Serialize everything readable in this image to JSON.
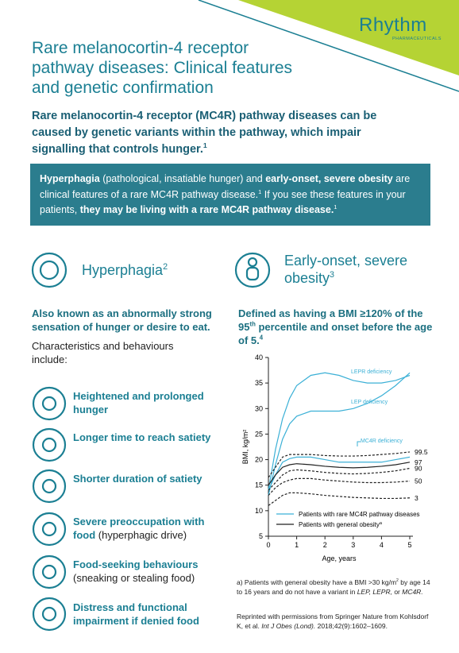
{
  "header": {
    "logo": "Rhythm",
    "logo_sub": "PHARMACEUTICALS",
    "title": "Rare melanocortin-4 receptor pathway diseases: Clinical features and genetic confirmation"
  },
  "intro": [
    {
      "text": "Rare melanocortin-4 receptor (MC4R) pathway diseases can be caused by genetic variants within the pathway, which impair signalling that controls hunger."
    },
    {
      "text": "1",
      "style": "sup"
    }
  ],
  "callout": [
    {
      "text": "Hyperphagia",
      "style": "b"
    },
    {
      "text": " (pathological, insatiable hunger) and "
    },
    {
      "text": "early-onset, severe obesity",
      "style": "b"
    },
    {
      "text": " are clinical features of a rare MC4R pathway disease."
    },
    {
      "text": "1",
      "style": "sup"
    },
    {
      "text": " If you see these features in your patients, "
    },
    {
      "text": "they may be living with a rare MC4R pathway disease.",
      "style": "b"
    },
    {
      "text": "1",
      "style": "sup"
    }
  ],
  "hyperphagia": {
    "heading": [
      {
        "text": "Hyperphagia"
      },
      {
        "text": "2",
        "style": "sup"
      }
    ],
    "definition": [
      {
        "text": "Also known as an abnormally strong sensation of hunger or desire to eat."
      }
    ],
    "intro": [
      {
        "text": "Characteristics and behaviours include:"
      }
    ],
    "items": [
      [
        {
          "text": "Heightened and prolonged hunger",
          "style": "b"
        }
      ],
      [
        {
          "text": "Longer time to reach satiety",
          "style": "b"
        }
      ],
      [
        {
          "text": "Shorter duration of satiety",
          "style": "b"
        }
      ],
      [
        {
          "text": "Severe preoccupation with food",
          "style": "b"
        },
        {
          "text": " (hyperphagic drive)"
        }
      ],
      [
        {
          "text": "Food-seeking behaviours",
          "style": "b"
        },
        {
          "text": "(sneaking or stealing food)",
          "style": "br"
        }
      ],
      [
        {
          "text": "Distress and functional impairment if denied food",
          "style": "b"
        }
      ]
    ]
  },
  "obesity": {
    "heading": [
      {
        "text": "Early-onset, severe obesity"
      },
      {
        "text": "3",
        "style": "sup"
      }
    ],
    "definition": [
      {
        "text": "Defined as having a BMI ≥120% of the 95"
      },
      {
        "text": "th",
        "style": "sup"
      },
      {
        "text": " percentile and onset before the age of 5."
      },
      {
        "text": "4",
        "style": "sup"
      }
    ]
  },
  "chart_data": {
    "type": "line",
    "xlabel": "Age, years",
    "ylabel": "BMI, kg/m²",
    "x": [
      0,
      0.25,
      0.5,
      0.75,
      1,
      1.5,
      2,
      2.5,
      3,
      3.5,
      4,
      4.5,
      5
    ],
    "xlim": [
      0,
      5
    ],
    "xticks": [
      0,
      1,
      2,
      3,
      4,
      5
    ],
    "ylim": [
      5,
      40
    ],
    "yticks": [
      5,
      10,
      15,
      20,
      25,
      30,
      35,
      40
    ],
    "series": [
      {
        "name": "LEPR deficiency",
        "color": "#3bb0d6",
        "dash": false,
        "values": [
          14,
          22,
          28,
          32,
          34.5,
          36.5,
          37,
          36.5,
          35.5,
          35,
          35,
          35.5,
          36.5
        ]
      },
      {
        "name": "LEP deficiency",
        "color": "#3bb0d6",
        "dash": false,
        "values": [
          13,
          19,
          24,
          27,
          28.5,
          29.5,
          29.5,
          29.5,
          30,
          31,
          32.5,
          34.5,
          37
        ]
      },
      {
        "name": "MC4R deficiency",
        "color": "#3bb0d6",
        "dash": false,
        "values": [
          14,
          17,
          19.5,
          20.2,
          20.5,
          20.5,
          20,
          19.5,
          19.5,
          19.5,
          19.5,
          20,
          20.5
        ]
      },
      {
        "name": "99.5",
        "color": "#222222",
        "dash": true,
        "values": [
          16.5,
          18.5,
          20.5,
          21,
          21,
          21,
          20.8,
          20.7,
          20.7,
          20.8,
          21,
          21.2,
          21.5
        ]
      },
      {
        "name": "97",
        "color": "#222222",
        "dash": false,
        "values": [
          15,
          17,
          18.5,
          19,
          19.2,
          19,
          18.7,
          18.5,
          18.4,
          18.5,
          18.7,
          19,
          19.5
        ]
      },
      {
        "name": "90",
        "color": "#222222",
        "dash": true,
        "values": [
          14,
          15.5,
          17,
          17.8,
          18,
          17.8,
          17.5,
          17.3,
          17.2,
          17.3,
          17.5,
          17.8,
          18.3
        ]
      },
      {
        "name": "50",
        "color": "#222222",
        "dash": true,
        "values": [
          13,
          14.5,
          15.5,
          16,
          16.3,
          16.3,
          16,
          15.8,
          15.6,
          15.5,
          15.5,
          15.6,
          15.8
        ]
      },
      {
        "name": "3",
        "color": "#222222",
        "dash": true,
        "values": [
          11,
          12,
          13,
          13.5,
          13.5,
          13.3,
          13,
          12.8,
          12.6,
          12.5,
          12.4,
          12.4,
          12.5
        ]
      }
    ],
    "legend": [
      {
        "label": "Patients with rare MC4R pathway diseases",
        "color": "#3bb0d6"
      },
      {
        "label": "Patients with general obesity",
        "sup": "a",
        "color": "#222222"
      }
    ]
  },
  "footnotes": {
    "a": [
      {
        "text": "a) Patients with general obesity have a BMI >30 kg/m"
      },
      {
        "text": "2",
        "style": "sup"
      },
      {
        "text": " by age 14 to 16 years and do not have a variant in "
      },
      {
        "text": "LEP, LEPR,",
        "style": "i"
      },
      {
        "text": " or "
      },
      {
        "text": "MC4R.",
        "style": "i"
      }
    ],
    "reprint": [
      {
        "text": "Reprinted with permissions from Springer Nature from Kohlsdorf K, et al. "
      },
      {
        "text": "Int J Obes (Lond).",
        "style": "i"
      },
      {
        "text": " 2018;42(9):1602–1609."
      }
    ]
  }
}
